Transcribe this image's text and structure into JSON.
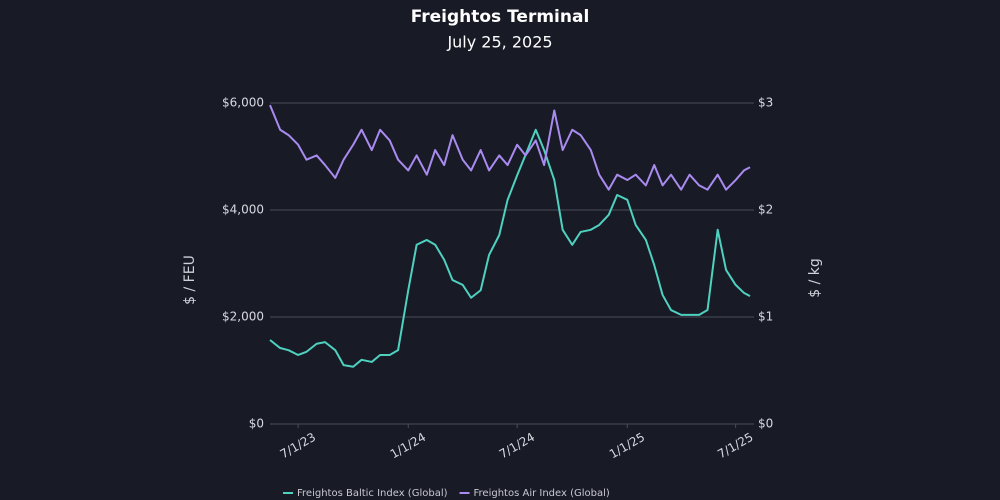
{
  "chart_data": {
    "type": "line",
    "title": "Freightos Terminal",
    "subtitle": "July 25, 2025",
    "ylabel": "$ / FEU",
    "y2label": "$ / kg",
    "x": [
      "2023-05-15",
      "2023-06-01",
      "2023-06-15",
      "2023-07-01",
      "2023-07-15",
      "2023-08-01",
      "2023-08-15",
      "2023-09-01",
      "2023-09-15",
      "2023-10-01",
      "2023-10-15",
      "2023-11-01",
      "2023-11-15",
      "2023-12-01",
      "2023-12-15",
      "2024-01-01",
      "2024-01-15",
      "2024-02-01",
      "2024-02-15",
      "2024-03-01",
      "2024-03-15",
      "2024-04-01",
      "2024-04-15",
      "2024-05-01",
      "2024-05-15",
      "2024-06-01",
      "2024-06-15",
      "2024-07-01",
      "2024-07-15",
      "2024-08-01",
      "2024-08-15",
      "2024-09-01",
      "2024-09-15",
      "2024-10-01",
      "2024-10-15",
      "2024-11-01",
      "2024-11-15",
      "2024-12-01",
      "2024-12-15",
      "2025-01-01",
      "2025-01-15",
      "2025-02-01",
      "2025-02-15",
      "2025-03-01",
      "2025-03-15",
      "2025-04-01",
      "2025-04-15",
      "2025-05-01",
      "2025-05-15",
      "2025-06-01",
      "2025-06-15",
      "2025-07-01",
      "2025-07-15",
      "2025-07-25"
    ],
    "series": [
      {
        "name": "Freightos Baltic Index (Global)",
        "color": "#4fd1c0",
        "axis": "y",
        "values": [
          1570,
          1420,
          1380,
          1290,
          1350,
          1500,
          1530,
          1380,
          1100,
          1070,
          1200,
          1160,
          1290,
          1290,
          1380,
          2500,
          3350,
          3440,
          3350,
          3070,
          2690,
          2600,
          2360,
          2500,
          3160,
          3530,
          4190,
          4650,
          5030,
          5500,
          5120,
          4560,
          3630,
          3350,
          3590,
          3630,
          3720,
          3910,
          4280,
          4190,
          3720,
          3440,
          2970,
          2410,
          2130,
          2040,
          2040,
          2040,
          2130,
          3630,
          2880,
          2600,
          2450,
          2390
        ]
      },
      {
        "name": "Freightos Air Index (Global)",
        "color": "#a98bf0",
        "axis": "y2",
        "values": [
          2.98,
          2.75,
          2.7,
          2.61,
          2.47,
          2.51,
          2.42,
          2.3,
          2.47,
          2.61,
          2.75,
          2.56,
          2.75,
          2.65,
          2.47,
          2.37,
          2.51,
          2.33,
          2.56,
          2.42,
          2.7,
          2.47,
          2.37,
          2.56,
          2.37,
          2.51,
          2.42,
          2.61,
          2.51,
          2.65,
          2.42,
          2.93,
          2.56,
          2.75,
          2.7,
          2.56,
          2.33,
          2.19,
          2.33,
          2.28,
          2.33,
          2.23,
          2.42,
          2.23,
          2.33,
          2.19,
          2.33,
          2.23,
          2.19,
          2.33,
          2.19,
          2.28,
          2.37,
          2.4
        ]
      }
    ],
    "xlim": [
      "2023-05-15",
      "2025-07-25"
    ],
    "xticks": [
      {
        "value": "2023-07-01",
        "label": "7/1/23"
      },
      {
        "value": "2024-01-01",
        "label": "1/1/24"
      },
      {
        "value": "2024-07-01",
        "label": "7/1/24"
      },
      {
        "value": "2025-01-01",
        "label": "1/1/25"
      },
      {
        "value": "2025-07-01",
        "label": "7/1/25"
      }
    ],
    "ylim": [
      0,
      6000
    ],
    "yticks": [
      {
        "value": 0,
        "label": "$0"
      },
      {
        "value": 2000,
        "label": "$2,000"
      },
      {
        "value": 4000,
        "label": "$4,000"
      },
      {
        "value": 6000,
        "label": "$6,000"
      }
    ],
    "y2lim": [
      0,
      3
    ],
    "y2ticks": [
      {
        "value": 0,
        "label": "$0"
      },
      {
        "value": 1,
        "label": "$1"
      },
      {
        "value": 2,
        "label": "$2"
      },
      {
        "value": 3,
        "label": "$3"
      }
    ],
    "grid": true,
    "legend": "bottom"
  }
}
